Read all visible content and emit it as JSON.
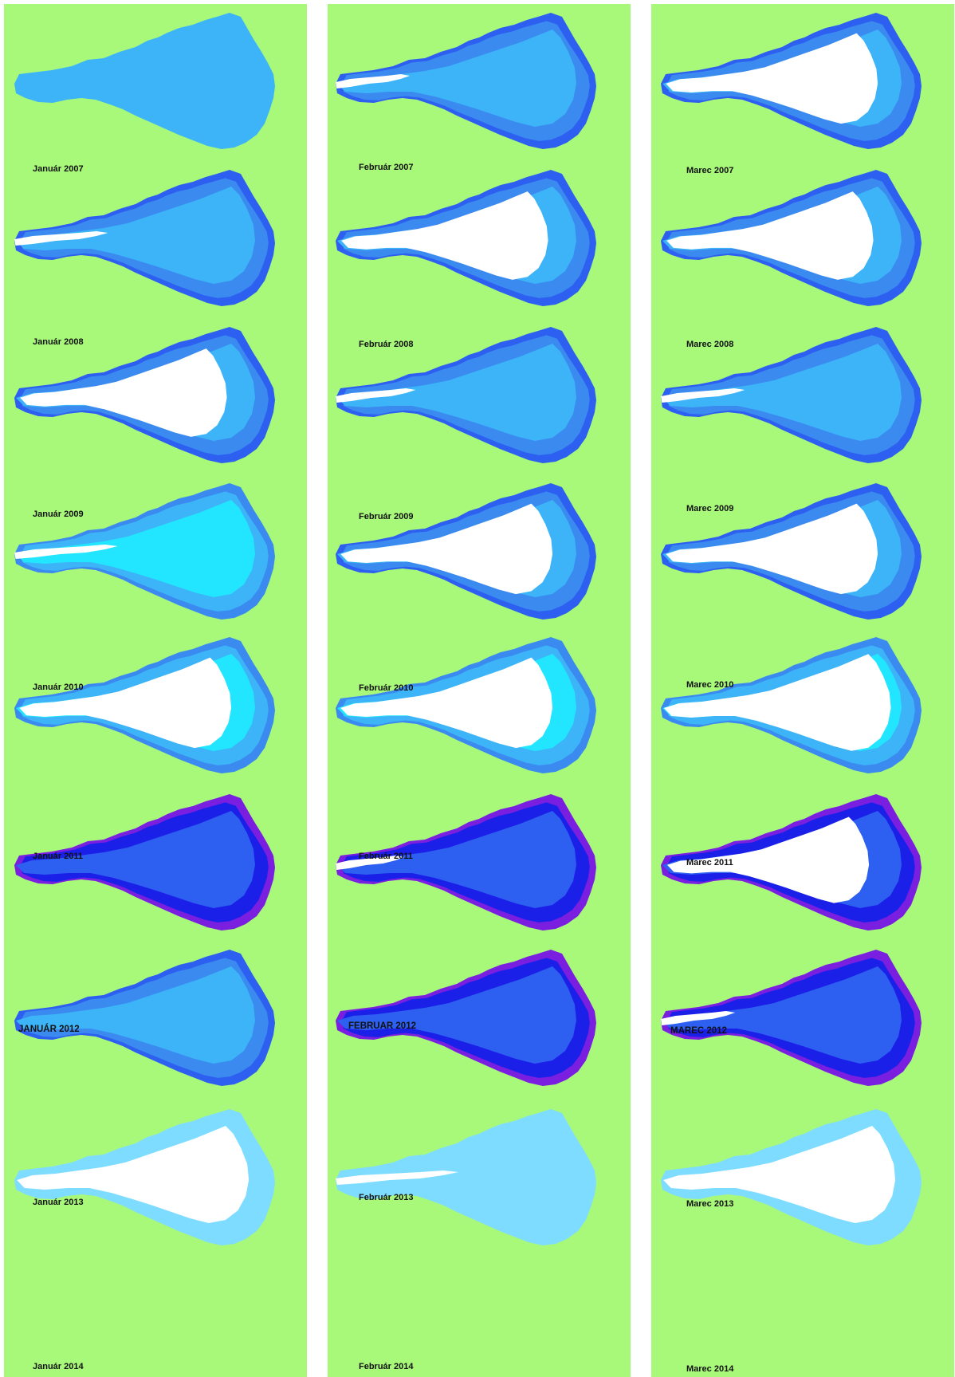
{
  "colors": {
    "background": "#a8f87a",
    "snow": "#ffffff",
    "cyan": "#22e6ff",
    "light_blue": "#3cb4f7",
    "medium_blue": "#3a8af0",
    "blue": "#2d5ff0",
    "deep_blue": "#1a20e8",
    "violet": "#7a1ee0",
    "pale_blue": "#7ddcff"
  },
  "columns": [
    {
      "month": "Január",
      "panels": [
        {
          "label": "Január 2007",
          "snow_fraction": 0.0,
          "scheme": "uniform_light"
        },
        {
          "label": "Január 2008",
          "snow_fraction": 0.15,
          "scheme": "blue"
        },
        {
          "label": "Január 2009",
          "snow_fraction": 0.75,
          "scheme": "blue"
        },
        {
          "label": "Január 2010",
          "snow_fraction": 0.2,
          "scheme": "cyan"
        },
        {
          "label": "Január 2011",
          "snow_fraction": 0.8,
          "scheme": "cyan"
        },
        {
          "label": "JANUÁR 2012",
          "snow_fraction": 0.0,
          "scheme": "deep"
        },
        {
          "label": "Január 2013",
          "snow_fraction": 0.0,
          "scheme": "blue"
        },
        {
          "label": "Január 2014",
          "snow_fraction": 1.0,
          "scheme": "pale"
        }
      ]
    },
    {
      "month": "Február",
      "panels": [
        {
          "label": "Február 2007",
          "snow_fraction": 0.05,
          "scheme": "blue"
        },
        {
          "label": "Február 2008",
          "snow_fraction": 0.75,
          "scheme": "blue"
        },
        {
          "label": "Február 2009",
          "snow_fraction": 0.08,
          "scheme": "blue"
        },
        {
          "label": "Február 2010",
          "snow_fraction": 0.8,
          "scheme": "blue"
        },
        {
          "label": "Február 2011",
          "snow_fraction": 0.8,
          "scheme": "cyan"
        },
        {
          "label": "FEBRUAR 2012",
          "snow_fraction": 0.02,
          "scheme": "deep"
        },
        {
          "label": "Február 2013",
          "snow_fraction": 0.0,
          "scheme": "deep"
        },
        {
          "label": "Február 2014",
          "snow_fraction": 0.3,
          "scheme": "uniform_pale"
        }
      ]
    },
    {
      "month": "Marec",
      "panels": [
        {
          "label": "Marec 2007",
          "snow_fraction": 0.8,
          "scheme": "blue"
        },
        {
          "label": "Marec 2008",
          "snow_fraction": 0.75,
          "scheme": "blue"
        },
        {
          "label": "Marec 2009",
          "snow_fraction": 0.1,
          "scheme": "blue"
        },
        {
          "label": "Marec 2010",
          "snow_fraction": 0.8,
          "scheme": "blue"
        },
        {
          "label": "Marec 2011",
          "snow_fraction": 0.95,
          "scheme": "cyan"
        },
        {
          "label": "MAREC 2012",
          "snow_fraction": 0.7,
          "scheme": "deep"
        },
        {
          "label": "Marec 2013",
          "snow_fraction": 0.05,
          "scheme": "deep"
        },
        {
          "label": "Marec 2014",
          "snow_fraction": 1.0,
          "scheme": "pale"
        }
      ]
    }
  ]
}
